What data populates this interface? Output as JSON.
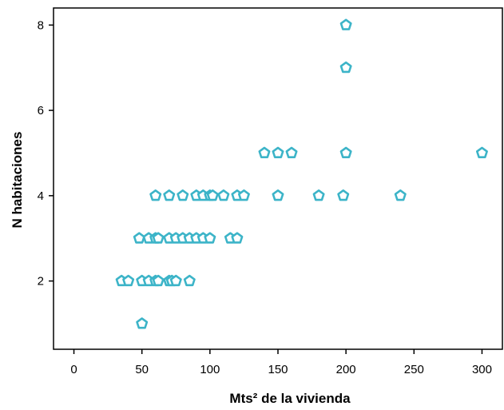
{
  "chart_data": {
    "type": "scatter",
    "title": "",
    "xlabel": "Mts² de la vivienda",
    "ylabel": "N habitaciones",
    "xlim": [
      -15,
      315
    ],
    "ylim": [
      0.4,
      8.4
    ],
    "xticks": [
      0,
      50,
      100,
      150,
      200,
      250,
      300
    ],
    "yticks": [
      2,
      4,
      6,
      8
    ],
    "grid": false,
    "legend": "none",
    "marker": "pentagon",
    "marker_color": "#3cb4c8",
    "points": [
      {
        "x": 50,
        "y": 1
      },
      {
        "x": 35,
        "y": 2
      },
      {
        "x": 40,
        "y": 2
      },
      {
        "x": 50,
        "y": 2
      },
      {
        "x": 55,
        "y": 2
      },
      {
        "x": 60,
        "y": 2
      },
      {
        "x": 62,
        "y": 2
      },
      {
        "x": 70,
        "y": 2
      },
      {
        "x": 72,
        "y": 2
      },
      {
        "x": 75,
        "y": 2
      },
      {
        "x": 85,
        "y": 2
      },
      {
        "x": 48,
        "y": 3
      },
      {
        "x": 55,
        "y": 3
      },
      {
        "x": 60,
        "y": 3
      },
      {
        "x": 62,
        "y": 3
      },
      {
        "x": 70,
        "y": 3
      },
      {
        "x": 75,
        "y": 3
      },
      {
        "x": 80,
        "y": 3
      },
      {
        "x": 85,
        "y": 3
      },
      {
        "x": 90,
        "y": 3
      },
      {
        "x": 95,
        "y": 3
      },
      {
        "x": 100,
        "y": 3
      },
      {
        "x": 115,
        "y": 3
      },
      {
        "x": 120,
        "y": 3
      },
      {
        "x": 60,
        "y": 4
      },
      {
        "x": 70,
        "y": 4
      },
      {
        "x": 80,
        "y": 4
      },
      {
        "x": 90,
        "y": 4
      },
      {
        "x": 95,
        "y": 4
      },
      {
        "x": 100,
        "y": 4
      },
      {
        "x": 102,
        "y": 4
      },
      {
        "x": 110,
        "y": 4
      },
      {
        "x": 120,
        "y": 4
      },
      {
        "x": 125,
        "y": 4
      },
      {
        "x": 150,
        "y": 4
      },
      {
        "x": 180,
        "y": 4
      },
      {
        "x": 198,
        "y": 4
      },
      {
        "x": 240,
        "y": 4
      },
      {
        "x": 140,
        "y": 5
      },
      {
        "x": 150,
        "y": 5
      },
      {
        "x": 160,
        "y": 5
      },
      {
        "x": 200,
        "y": 5
      },
      {
        "x": 300,
        "y": 5
      },
      {
        "x": 200,
        "y": 7
      },
      {
        "x": 200,
        "y": 8
      }
    ]
  }
}
